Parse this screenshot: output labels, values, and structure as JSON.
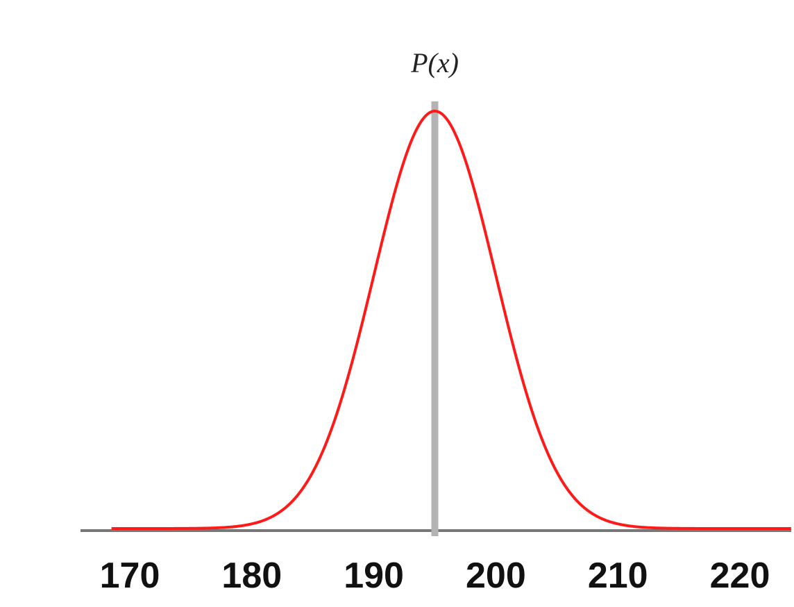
{
  "chart_data": {
    "type": "line",
    "ylabel": "P(x)",
    "xlabel": "",
    "title": "",
    "x_ticks": [
      170,
      180,
      190,
      200,
      210,
      220
    ],
    "xlim": [
      168.5,
      224.2
    ],
    "distribution": {
      "kind": "normal",
      "mean": 195,
      "std_dev": 5
    },
    "grid": false,
    "colors": {
      "curve": "#ff1a1a",
      "mean_line": "#b3b3b3",
      "axis": "#777777"
    }
  }
}
